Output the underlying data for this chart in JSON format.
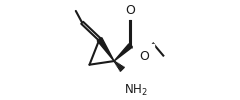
{
  "bg_color": "#ffffff",
  "line_color": "#1a1a1a",
  "bond_lw": 1.5,
  "fig_w": 2.4,
  "fig_h": 1.0,
  "dpi": 100,
  "nh2_label": "NH$_2$",
  "oxygen_label": "O"
}
